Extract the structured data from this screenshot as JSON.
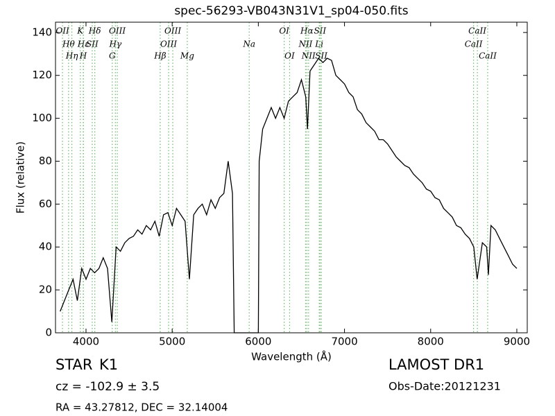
{
  "chart_data": {
    "type": "line",
    "title": "spec-56293-VB043N31V1_sp04-050.fits",
    "xlabel": "Wavelength (Å)",
    "ylabel": "Flux (relative)",
    "x": [
      3700,
      3750,
      3800,
      3850,
      3900,
      3950,
      4000,
      4050,
      4100,
      4150,
      4200,
      4250,
      4300,
      4350,
      4400,
      4450,
      4500,
      4550,
      4600,
      4650,
      4700,
      4750,
      4800,
      4850,
      4900,
      4950,
      5000,
      5050,
      5100,
      5150,
      5200,
      5250,
      5300,
      5350,
      5400,
      5450,
      5500,
      5550,
      5600,
      5650,
      5700,
      5720,
      5800,
      5900,
      5950,
      6000,
      6010,
      6050,
      6100,
      6150,
      6200,
      6250,
      6300,
      6350,
      6400,
      6450,
      6500,
      6550,
      6570,
      6600,
      6650,
      6700,
      6750,
      6800,
      6850,
      6900,
      6950,
      7000,
      7050,
      7100,
      7150,
      7200,
      7250,
      7300,
      7350,
      7400,
      7450,
      7500,
      7550,
      7600,
      7650,
      7700,
      7750,
      7800,
      7850,
      7900,
      7950,
      8000,
      8050,
      8100,
      8150,
      8200,
      8250,
      8300,
      8350,
      8400,
      8450,
      8500,
      8540,
      8600,
      8650,
      8670,
      8700,
      8750,
      8800,
      8850,
      8900,
      8950,
      9000
    ],
    "values": [
      10,
      15,
      20,
      25,
      15,
      30,
      25,
      30,
      28,
      30,
      35,
      30,
      5,
      40,
      38,
      42,
      44,
      45,
      48,
      46,
      50,
      48,
      52,
      45,
      55,
      56,
      50,
      58,
      55,
      52,
      25,
      55,
      58,
      60,
      55,
      62,
      58,
      63,
      65,
      80,
      65,
      0,
      0,
      0,
      0,
      0,
      80,
      95,
      100,
      105,
      100,
      105,
      100,
      108,
      110,
      112,
      118,
      110,
      95,
      122,
      125,
      128,
      126,
      128,
      127,
      120,
      118,
      116,
      112,
      110,
      104,
      102,
      98,
      96,
      94,
      90,
      90,
      88,
      85,
      82,
      80,
      78,
      77,
      74,
      72,
      70,
      67,
      66,
      63,
      62,
      58,
      56,
      54,
      50,
      49,
      46,
      44,
      40,
      25,
      42,
      40,
      27,
      50,
      48,
      44,
      40,
      36,
      32,
      30
    ],
    "color": "#000000",
    "line_color": "#66bb66",
    "xlim": [
      3646,
      9121
    ],
    "ylim": [
      0,
      144.8
    ],
    "xticks": [
      4000,
      5000,
      6000,
      7000,
      8000,
      9000
    ],
    "yticks": [
      0,
      20,
      40,
      60,
      80,
      100,
      120,
      140
    ],
    "lines": [
      {
        "label": "OII",
        "x": 3727
      },
      {
        "label": "Hθ",
        "x": 3798
      },
      {
        "label": "Hη",
        "x": 3836
      },
      {
        "label": "K",
        "x": 3934
      },
      {
        "label": "Hε",
        "x": 3970
      },
      {
        "label": "H",
        "x": 3968
      },
      {
        "label": "Hδ",
        "x": 4102
      },
      {
        "label": "SII",
        "x": 4072
      },
      {
        "label": "G",
        "x": 4305
      },
      {
        "label": "OIII",
        "x": 4363
      },
      {
        "label": "Hγ",
        "x": 4341
      },
      {
        "label": "Hβ",
        "x": 4861
      },
      {
        "label": "OIII",
        "x": 5007
      },
      {
        "label": "OIII",
        "x": 4959
      },
      {
        "label": "Mg",
        "x": 5175
      },
      {
        "label": "OI",
        "x": 6300
      },
      {
        "label": "Na",
        "x": 5894
      },
      {
        "label": "OI",
        "x": 6363
      },
      {
        "label": "Hα",
        "x": 6563
      },
      {
        "label": "NII",
        "x": 6548
      },
      {
        "label": "NII",
        "x": 6583
      },
      {
        "label": "SII",
        "x": 6716
      },
      {
        "label": "Li",
        "x": 6707
      },
      {
        "label": "SII",
        "x": 6731
      },
      {
        "label": "CaII",
        "x": 8542
      },
      {
        "label": "CaII",
        "x": 8498
      },
      {
        "label": "CaII",
        "x": 8662
      }
    ]
  },
  "footer": {
    "class": "STAR",
    "subclass": "K1",
    "cz": "cz = -102.9 ± 3.5",
    "release": "LAMOST DR1",
    "obs_date": "Obs-Date:20121231",
    "coords": "RA = 43.27812, DEC = 32.14004"
  }
}
